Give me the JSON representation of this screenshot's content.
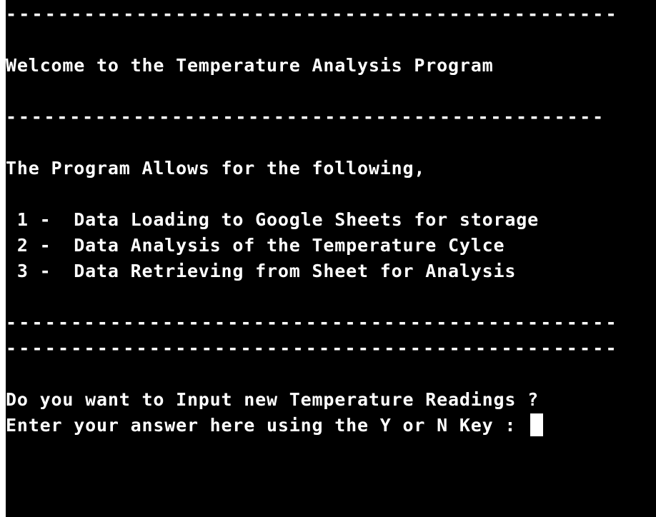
{
  "terminal": {
    "separator_1": "-----------------------------------------------",
    "welcome": "Welcome to the Temperature Analysis Program",
    "separator_2": "-----------------------------------------------",
    "intro": "The Program Allows for the following,",
    "options": [
      " 1 -  Data Loading to Google Sheets for storage",
      " 2 -  Data Analysis of the Temperature Cylce",
      " 3 -  Data Retrieving from Sheet for Analysis"
    ],
    "separator_3": "-----------------------------------------------",
    "separator_4": "-----------------------------------------------",
    "question": "Do you want to Input new Temperature Readings ?",
    "prompt": "Enter your answer here using the Y or N Key : ",
    "colors": {
      "background": "#000000",
      "text": "#ffffff"
    }
  }
}
